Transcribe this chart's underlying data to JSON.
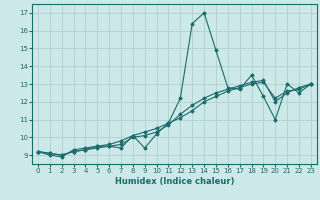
{
  "xlabel": "Humidex (Indice chaleur)",
  "background_color": "#cce8e8",
  "grid_color": "#aacccc",
  "line_color": "#1a6b6b",
  "xlim": [
    -0.5,
    23.5
  ],
  "ylim": [
    8.5,
    17.5
  ],
  "xticks": [
    0,
    1,
    2,
    3,
    4,
    5,
    6,
    7,
    8,
    9,
    10,
    11,
    12,
    13,
    14,
    15,
    16,
    17,
    18,
    19,
    20,
    21,
    22,
    23
  ],
  "yticks": [
    9,
    10,
    11,
    12,
    13,
    14,
    15,
    16,
    17
  ],
  "lines": [
    {
      "x": [
        0,
        1,
        2,
        3,
        4,
        5,
        6,
        7,
        8,
        9,
        10,
        11,
        12,
        13,
        14,
        15,
        16,
        17,
        18,
        19,
        20,
        21,
        22,
        23
      ],
      "y": [
        9.2,
        9.0,
        8.9,
        9.3,
        9.4,
        9.5,
        9.5,
        9.4,
        10.1,
        9.4,
        10.2,
        10.8,
        12.2,
        16.4,
        17.0,
        14.9,
        12.8,
        12.7,
        13.5,
        12.3,
        11.0,
        13.0,
        12.5,
        13.0
      ]
    },
    {
      "x": [
        0,
        1,
        2,
        3,
        4,
        5,
        6,
        7,
        8,
        9,
        10,
        11,
        12,
        13,
        14,
        15,
        16,
        17,
        18,
        19,
        20,
        21,
        22,
        23
      ],
      "y": [
        9.2,
        9.1,
        9.0,
        9.2,
        9.3,
        9.4,
        9.5,
        9.6,
        10.0,
        10.1,
        10.3,
        10.7,
        11.3,
        11.8,
        12.2,
        12.5,
        12.7,
        12.9,
        13.1,
        13.2,
        12.0,
        12.5,
        12.8,
        13.0
      ]
    },
    {
      "x": [
        0,
        1,
        2,
        3,
        4,
        5,
        6,
        7,
        8,
        9,
        10,
        11,
        12,
        13,
        14,
        15,
        16,
        17,
        18,
        19,
        20,
        21,
        22,
        23
      ],
      "y": [
        9.2,
        9.1,
        9.0,
        9.2,
        9.3,
        9.5,
        9.6,
        9.8,
        10.1,
        10.3,
        10.5,
        10.8,
        11.1,
        11.5,
        12.0,
        12.3,
        12.6,
        12.8,
        13.0,
        13.1,
        12.2,
        12.6,
        12.7,
        13.0
      ]
    }
  ]
}
